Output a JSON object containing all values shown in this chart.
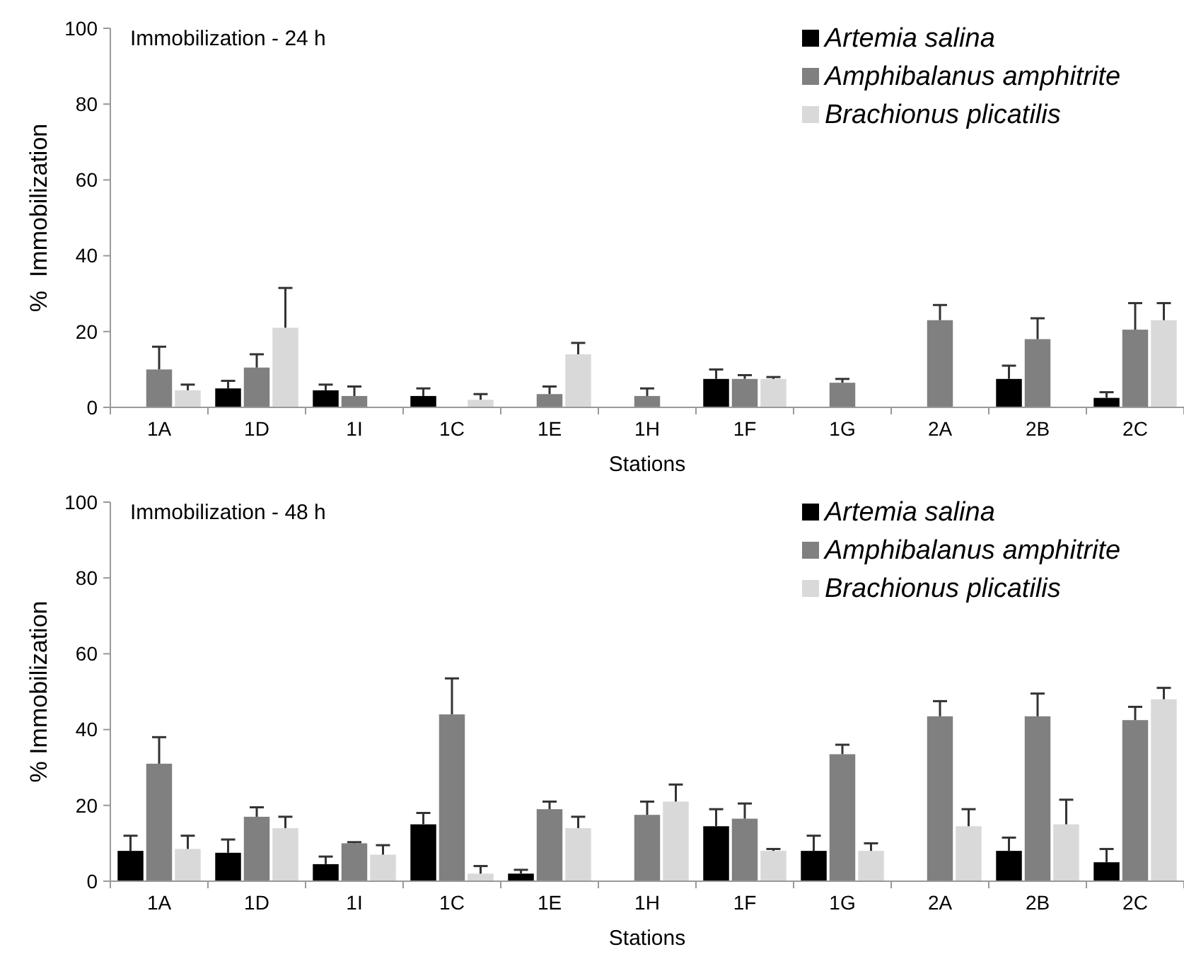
{
  "chart_data": [
    {
      "type": "bar",
      "title": "Immobilization - 24 h",
      "xlabel": "Stations",
      "ylabel": "%  Immobilization",
      "categories": [
        "1A",
        "1D",
        "1I",
        "1C",
        "1E",
        "1H",
        "1F",
        "1G",
        "2A",
        "2B",
        "2C"
      ],
      "ylim": [
        0,
        100
      ],
      "yticks": [
        0,
        20,
        40,
        60,
        80,
        100
      ],
      "legend": "top right",
      "series": [
        {
          "name": "Artemia salina",
          "color": "#000000",
          "values": [
            null,
            5,
            4.5,
            3,
            null,
            null,
            7.5,
            null,
            null,
            7.5,
            2.5
          ],
          "errors": [
            null,
            [
              5,
              7
            ],
            [
              4.5,
              6
            ],
            [
              3,
              5
            ],
            null,
            null,
            [
              7.5,
              10
            ],
            null,
            null,
            [
              7.5,
              11
            ],
            [
              2.5,
              4
            ]
          ]
        },
        {
          "name": "Amphibalanus amphitrite",
          "color": "#808080",
          "values": [
            10,
            10.5,
            3,
            null,
            3.5,
            3,
            7.5,
            6.5,
            23,
            18,
            20.5
          ],
          "errors": [
            [
              10,
              16
            ],
            [
              10.5,
              14
            ],
            [
              3,
              5.5
            ],
            null,
            [
              3.5,
              5.5
            ],
            [
              3,
              5
            ],
            [
              7.5,
              8.5
            ],
            [
              6.5,
              7.5
            ],
            [
              23,
              27
            ],
            [
              18,
              23.5
            ],
            [
              20.5,
              27.5
            ]
          ]
        },
        {
          "name": "Brachionus plicatilis",
          "color": "#d9d9d9",
          "values": [
            4.5,
            21,
            null,
            2,
            14,
            null,
            7.5,
            null,
            null,
            null,
            23
          ],
          "errors": [
            [
              4.5,
              6
            ],
            [
              21,
              31.5
            ],
            null,
            [
              2,
              3.5
            ],
            [
              14,
              17
            ],
            null,
            [
              7.5,
              8
            ],
            null,
            null,
            null,
            [
              23,
              27.5
            ]
          ]
        }
      ]
    },
    {
      "type": "bar",
      "title": "Immobilization - 48 h",
      "xlabel": "Stations",
      "ylabel": "% Immobilization",
      "categories": [
        "1A",
        "1D",
        "1I",
        "1C",
        "1E",
        "1H",
        "1F",
        "1G",
        "2A",
        "2B",
        "2C"
      ],
      "ylim": [
        0,
        100
      ],
      "yticks": [
        0,
        20,
        40,
        60,
        80,
        100
      ],
      "legend": "top right",
      "series": [
        {
          "name": "Artemia salina",
          "color": "#000000",
          "values": [
            8,
            7.5,
            4.5,
            15,
            2,
            null,
            14.5,
            8,
            null,
            8,
            5
          ],
          "errors": [
            [
              8,
              12
            ],
            [
              7.5,
              11
            ],
            [
              4.5,
              6.5
            ],
            [
              15,
              18
            ],
            [
              2,
              3
            ],
            null,
            [
              14.5,
              19
            ],
            [
              8,
              12
            ],
            null,
            [
              8,
              11.5
            ],
            [
              5,
              8.5
            ]
          ]
        },
        {
          "name": "Amphibalanus amphitrite",
          "color": "#808080",
          "values": [
            31,
            17,
            10,
            44,
            19,
            17.5,
            16.5,
            33.5,
            43.5,
            43.5,
            42.5
          ],
          "errors": [
            [
              31,
              38
            ],
            [
              17,
              19.5
            ],
            [
              10,
              10.3
            ],
            [
              44,
              53.5
            ],
            [
              19,
              21
            ],
            [
              17.5,
              21
            ],
            [
              16.5,
              20.5
            ],
            [
              33.5,
              36
            ],
            [
              43.5,
              47.5
            ],
            [
              43.5,
              49.5
            ],
            [
              42.5,
              46
            ]
          ]
        },
        {
          "name": "Brachionus plicatilis",
          "color": "#d9d9d9",
          "values": [
            8.5,
            14,
            7,
            2,
            14,
            21,
            8,
            8,
            14.5,
            15,
            48
          ],
          "errors": [
            [
              8.5,
              12
            ],
            [
              14,
              17
            ],
            [
              7,
              9.5
            ],
            [
              2,
              4
            ],
            [
              14,
              17
            ],
            [
              21,
              25.5
            ],
            [
              8,
              8.5
            ],
            [
              8,
              10
            ],
            [
              14.5,
              19
            ],
            [
              15,
              21.5
            ],
            [
              48,
              51
            ]
          ]
        }
      ]
    }
  ]
}
